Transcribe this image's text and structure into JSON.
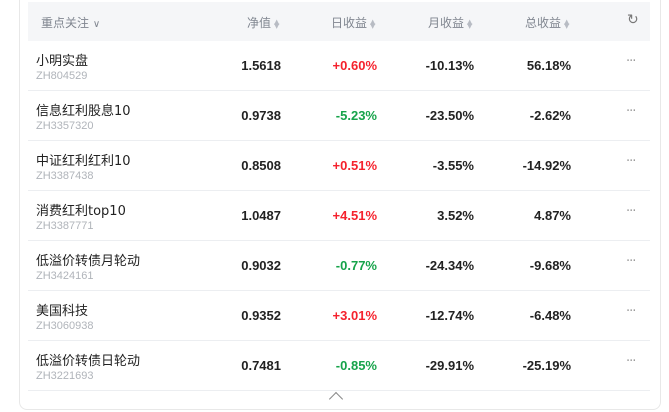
{
  "header": {
    "name_col": "重点关注",
    "nav": "净值",
    "day": "日收益",
    "month": "月收益",
    "total": "总收益",
    "refresh_icon": "refresh-icon"
  },
  "colors": {
    "up": "#f5222d",
    "down": "#16a34a"
  },
  "rows": [
    {
      "name": "小明实盘",
      "code": "ZH804529",
      "nav": "1.5618",
      "day": "+0.60%",
      "month": "-10.13%",
      "total": "56.18%"
    },
    {
      "name": "信息红利股息10",
      "code": "ZH3357320",
      "nav": "0.9738",
      "day": "-5.23%",
      "month": "-23.50%",
      "total": "-2.62%"
    },
    {
      "name": "中证红利红利10",
      "code": "ZH3387438",
      "nav": "0.8508",
      "day": "+0.51%",
      "month": "-3.55%",
      "total": "-14.92%"
    },
    {
      "name": "消费红利top10",
      "code": "ZH3387771",
      "nav": "1.0487",
      "day": "+4.51%",
      "month": "3.52%",
      "total": "4.87%"
    },
    {
      "name": "低溢价转债月轮动",
      "code": "ZH3424161",
      "nav": "0.9032",
      "day": "-0.77%",
      "month": "-24.34%",
      "total": "-9.68%"
    },
    {
      "name": "美国科技",
      "code": "ZH3060938",
      "nav": "0.9352",
      "day": "+3.01%",
      "month": "-12.74%",
      "total": "-6.48%"
    },
    {
      "name": "低溢价转债日轮动",
      "code": "ZH3221693",
      "nav": "0.7481",
      "day": "-0.85%",
      "month": "-29.91%",
      "total": "-25.19%"
    }
  ]
}
